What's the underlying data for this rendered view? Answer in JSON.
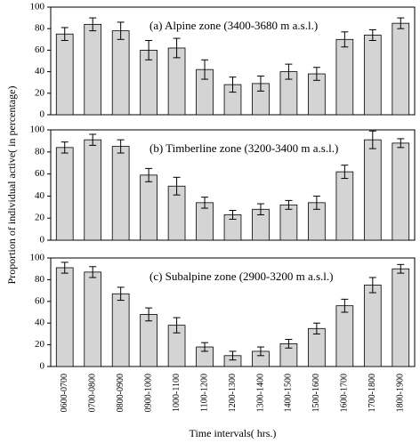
{
  "chart_data": [
    {
      "type": "bar",
      "title": "(a)  Alpine zone (3400-3680 m a.s.l.)",
      "values": [
        75,
        84,
        78,
        60,
        62,
        42,
        28,
        29,
        40,
        38,
        70,
        74,
        85
      ],
      "errors": [
        6,
        6,
        8,
        9,
        9,
        9,
        7,
        7,
        7,
        6,
        7,
        5,
        5
      ],
      "color": "#d4d4d4",
      "ylim": [
        0,
        100
      ],
      "yticks": [
        0,
        20,
        40,
        60,
        80,
        100
      ]
    },
    {
      "type": "bar",
      "title": "(b)  Timberline zone (3200-3400 m a.s.l.)",
      "ylabel": "Proportion of individual active( in percentage)",
      "values": [
        84,
        91,
        85,
        59,
        49,
        34,
        23,
        28,
        32,
        34,
        62,
        91,
        88
      ],
      "errors": [
        5,
        5,
        6,
        6,
        8,
        5,
        4,
        5,
        4,
        6,
        6,
        8,
        4
      ],
      "color": "#d4d4d4",
      "ylim": [
        0,
        100
      ],
      "yticks": [
        0,
        20,
        40,
        60,
        80,
        100
      ]
    },
    {
      "type": "bar",
      "title": "(c)  Subalpine zone (2900-3200 m a.s.l.)",
      "xlabel": "Time intervals( hrs.)",
      "categories": [
        "0600-0700",
        "0700-0800",
        "0800-0900",
        "0900-1000",
        "1000-1100",
        "1100-1200",
        "1200-1300",
        "1300-1400",
        "1400-1500",
        "1500-1600",
        "1600-1700",
        "1700-1800",
        "1800-1900"
      ],
      "values": [
        91,
        87,
        67,
        48,
        38,
        18,
        10,
        14,
        21,
        35,
        56,
        75,
        90
      ],
      "errors": [
        5,
        5,
        6,
        6,
        7,
        4,
        4,
        4,
        4,
        5,
        6,
        7,
        4
      ],
      "color": "#d4d4d4",
      "ylim": [
        0,
        100
      ],
      "yticks": [
        0,
        20,
        40,
        60,
        80,
        100
      ]
    }
  ]
}
